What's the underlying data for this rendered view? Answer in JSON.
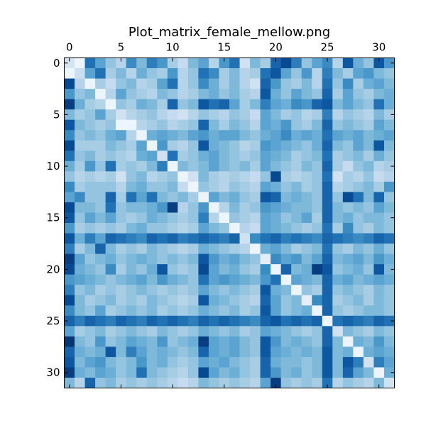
{
  "chart_data": {
    "type": "heatmap",
    "title": "Plot_matrix_female_mellow.png",
    "xlabel": "",
    "ylabel": "",
    "colormap": "Blues",
    "value_range": [
      0,
      1
    ],
    "x_ticks_position": "top",
    "x_ticks": [
      0,
      5,
      10,
      15,
      20,
      25,
      30
    ],
    "y_ticks": [
      0,
      5,
      10,
      15,
      20,
      25,
      30
    ],
    "x_range": [
      -0.5,
      31.5
    ],
    "y_range": [
      31.5,
      -0.5
    ],
    "grid": false,
    "colors": {
      "low": "#f7fbff",
      "mid": "#6baed6",
      "high": "#08306b",
      "frame": "#000000"
    },
    "rows": 32,
    "cols": 32,
    "values": [
      [
        0.18,
        0.05,
        0.75,
        0.55,
        0.4,
        0.3,
        0.65,
        0.45,
        0.7,
        0.6,
        0.35,
        0.25,
        0.45,
        0.55,
        0.3,
        0.6,
        0.75,
        0.2,
        0.45,
        0.35,
        0.8,
        0.9,
        0.7,
        0.4,
        0.55,
        0.65,
        0.3,
        0.85,
        0.5,
        0.4,
        0.85,
        0.6
      ],
      [
        0.05,
        0.22,
        0.55,
        0.75,
        0.35,
        0.45,
        0.3,
        0.5,
        0.4,
        0.35,
        0.6,
        0.3,
        0.4,
        0.75,
        0.65,
        0.35,
        0.45,
        0.3,
        0.35,
        0.75,
        0.85,
        0.55,
        0.4,
        0.6,
        0.3,
        0.7,
        0.45,
        0.35,
        0.55,
        0.6,
        0.45,
        0.4
      ],
      [
        0.9,
        0.3,
        0.05,
        0.35,
        0.25,
        0.4,
        0.45,
        0.3,
        0.35,
        0.55,
        0.75,
        0.3,
        0.4,
        0.65,
        0.5,
        0.35,
        0.45,
        0.3,
        0.2,
        0.8,
        0.6,
        0.4,
        0.35,
        0.45,
        0.3,
        0.75,
        0.4,
        0.65,
        0.35,
        0.5,
        0.55,
        0.45
      ],
      [
        0.6,
        0.4,
        0.45,
        0.05,
        0.3,
        0.55,
        0.4,
        0.35,
        0.3,
        0.45,
        0.4,
        0.3,
        0.35,
        0.45,
        0.5,
        0.4,
        0.45,
        0.35,
        0.3,
        0.85,
        0.5,
        0.4,
        0.55,
        0.45,
        0.4,
        0.8,
        0.35,
        0.55,
        0.4,
        0.35,
        0.45,
        0.5
      ],
      [
        0.95,
        0.5,
        0.35,
        0.3,
        0.05,
        0.4,
        0.35,
        0.5,
        0.45,
        0.35,
        0.8,
        0.4,
        0.45,
        0.85,
        0.75,
        0.8,
        0.55,
        0.35,
        0.45,
        0.7,
        0.55,
        0.5,
        0.65,
        0.6,
        0.8,
        0.85,
        0.45,
        0.55,
        0.45,
        0.4,
        0.75,
        0.5
      ],
      [
        0.45,
        0.35,
        0.4,
        0.55,
        0.35,
        0.2,
        0.3,
        0.35,
        0.4,
        0.3,
        0.25,
        0.2,
        0.3,
        0.4,
        0.35,
        0.3,
        0.4,
        0.35,
        0.25,
        0.55,
        0.45,
        0.35,
        0.4,
        0.3,
        0.35,
        0.7,
        0.3,
        0.4,
        0.35,
        0.3,
        0.45,
        0.35
      ],
      [
        0.85,
        0.45,
        0.4,
        0.35,
        0.4,
        0.05,
        0.05,
        0.3,
        0.35,
        0.4,
        0.3,
        0.35,
        0.4,
        0.8,
        0.45,
        0.35,
        0.45,
        0.4,
        0.3,
        0.55,
        0.5,
        0.6,
        0.4,
        0.35,
        0.45,
        0.8,
        0.4,
        0.45,
        0.4,
        0.35,
        0.55,
        0.45
      ],
      [
        0.65,
        0.4,
        0.45,
        0.4,
        0.5,
        0.55,
        0.3,
        0.05,
        0.5,
        0.55,
        0.5,
        0.45,
        0.55,
        0.6,
        0.5,
        0.55,
        0.55,
        0.45,
        0.4,
        0.5,
        0.55,
        0.65,
        0.5,
        0.55,
        0.5,
        0.75,
        0.55,
        0.5,
        0.55,
        0.45,
        0.5,
        0.55
      ],
      [
        0.9,
        0.35,
        0.35,
        0.35,
        0.45,
        0.4,
        0.35,
        0.55,
        0.05,
        0.6,
        0.35,
        0.3,
        0.4,
        0.85,
        0.5,
        0.45,
        0.4,
        0.3,
        0.35,
        0.6,
        0.55,
        0.5,
        0.45,
        0.4,
        0.5,
        0.8,
        0.45,
        0.4,
        0.55,
        0.45,
        0.85,
        0.45
      ],
      [
        0.75,
        0.4,
        0.45,
        0.35,
        0.4,
        0.35,
        0.3,
        0.5,
        0.55,
        0.2,
        0.75,
        0.35,
        0.4,
        0.5,
        0.55,
        0.45,
        0.4,
        0.35,
        0.4,
        0.55,
        0.5,
        0.45,
        0.35,
        0.4,
        0.45,
        0.75,
        0.35,
        0.4,
        0.45,
        0.35,
        0.5,
        0.4
      ],
      [
        0.5,
        0.35,
        0.6,
        0.4,
        0.75,
        0.35,
        0.4,
        0.35,
        0.45,
        0.7,
        0.05,
        0.45,
        0.4,
        0.45,
        0.55,
        0.45,
        0.4,
        0.45,
        0.35,
        0.55,
        0.45,
        0.4,
        0.35,
        0.45,
        0.4,
        0.8,
        0.35,
        0.25,
        0.4,
        0.45,
        0.3,
        0.35
      ],
      [
        0.4,
        0.3,
        0.35,
        0.3,
        0.35,
        0.2,
        0.4,
        0.45,
        0.3,
        0.35,
        0.4,
        0.05,
        0.2,
        0.45,
        0.35,
        0.3,
        0.35,
        0.3,
        0.25,
        0.4,
        0.9,
        0.35,
        0.3,
        0.35,
        0.4,
        0.75,
        0.2,
        0.35,
        0.3,
        0.4,
        0.25,
        0.3
      ],
      [
        0.65,
        0.35,
        0.4,
        0.4,
        0.4,
        0.3,
        0.45,
        0.5,
        0.4,
        0.4,
        0.45,
        0.25,
        0.05,
        0.4,
        0.35,
        0.3,
        0.4,
        0.35,
        0.3,
        0.55,
        0.5,
        0.4,
        0.45,
        0.35,
        0.4,
        0.8,
        0.3,
        0.35,
        0.4,
        0.45,
        0.35,
        0.6
      ],
      [
        0.55,
        0.65,
        0.4,
        0.4,
        0.8,
        0.35,
        0.75,
        0.55,
        0.75,
        0.45,
        0.4,
        0.45,
        0.35,
        0.05,
        0.55,
        0.45,
        0.5,
        0.4,
        0.35,
        0.85,
        0.8,
        0.45,
        0.5,
        0.45,
        0.4,
        0.8,
        0.4,
        0.9,
        0.75,
        0.45,
        0.8,
        0.4
      ],
      [
        0.9,
        0.45,
        0.45,
        0.4,
        0.75,
        0.4,
        0.45,
        0.45,
        0.5,
        0.6,
        0.95,
        0.3,
        0.4,
        0.6,
        0.05,
        0.3,
        0.45,
        0.35,
        0.4,
        0.6,
        0.55,
        0.5,
        0.45,
        0.45,
        0.4,
        0.8,
        0.45,
        0.4,
        0.45,
        0.4,
        0.55,
        0.45
      ],
      [
        0.85,
        0.4,
        0.55,
        0.45,
        0.55,
        0.4,
        0.35,
        0.4,
        0.5,
        0.45,
        0.4,
        0.35,
        0.4,
        0.7,
        0.3,
        0.05,
        0.4,
        0.35,
        0.3,
        0.55,
        0.5,
        0.4,
        0.45,
        0.55,
        0.35,
        0.8,
        0.45,
        0.5,
        0.4,
        0.45,
        0.45,
        0.4
      ],
      [
        0.6,
        0.35,
        0.4,
        0.35,
        0.4,
        0.35,
        0.45,
        0.5,
        0.4,
        0.4,
        0.35,
        0.3,
        0.35,
        0.55,
        0.45,
        0.4,
        0.05,
        0.3,
        0.25,
        0.55,
        0.5,
        0.45,
        0.4,
        0.35,
        0.4,
        0.75,
        0.35,
        0.65,
        0.4,
        0.35,
        0.45,
        0.4
      ],
      [
        0.85,
        0.5,
        0.7,
        0.55,
        0.8,
        0.75,
        0.7,
        0.65,
        0.8,
        0.75,
        0.8,
        0.7,
        0.75,
        0.8,
        0.75,
        0.7,
        0.8,
        0.2,
        0.65,
        0.75,
        0.8,
        0.7,
        0.75,
        0.7,
        0.65,
        0.8,
        0.75,
        0.7,
        0.65,
        0.7,
        0.8,
        0.75
      ],
      [
        0.7,
        0.35,
        0.45,
        0.8,
        0.45,
        0.35,
        0.4,
        0.35,
        0.45,
        0.4,
        0.35,
        0.3,
        0.35,
        0.5,
        0.45,
        0.4,
        0.35,
        0.3,
        0.05,
        0.5,
        0.55,
        0.45,
        0.35,
        0.4,
        0.45,
        0.75,
        0.4,
        0.35,
        0.45,
        0.4,
        0.5,
        0.4
      ],
      [
        0.95,
        0.55,
        0.4,
        0.45,
        0.5,
        0.4,
        0.45,
        0.5,
        0.45,
        0.4,
        0.45,
        0.4,
        0.45,
        0.85,
        0.6,
        0.5,
        0.55,
        0.45,
        0.4,
        0.1,
        0.65,
        0.55,
        0.6,
        0.45,
        0.55,
        0.8,
        0.45,
        0.5,
        0.55,
        0.45,
        0.6,
        0.5
      ],
      [
        0.9,
        0.5,
        0.45,
        0.4,
        0.65,
        0.35,
        0.45,
        0.4,
        0.5,
        0.85,
        0.4,
        0.35,
        0.4,
        0.9,
        0.55,
        0.45,
        0.5,
        0.4,
        0.35,
        0.65,
        0.05,
        0.8,
        0.45,
        0.5,
        0.95,
        0.85,
        0.4,
        0.45,
        0.5,
        0.4,
        0.85,
        0.45
      ],
      [
        0.6,
        0.55,
        0.5,
        0.45,
        0.4,
        0.45,
        0.5,
        0.55,
        0.45,
        0.6,
        0.5,
        0.45,
        0.4,
        0.75,
        0.55,
        0.6,
        0.55,
        0.5,
        0.45,
        0.6,
        0.75,
        0.05,
        0.55,
        0.5,
        0.45,
        0.8,
        0.5,
        0.55,
        0.45,
        0.5,
        0.55,
        0.5
      ],
      [
        0.7,
        0.4,
        0.45,
        0.35,
        0.4,
        0.35,
        0.4,
        0.45,
        0.4,
        0.35,
        0.4,
        0.35,
        0.4,
        0.55,
        0.45,
        0.4,
        0.45,
        0.4,
        0.35,
        0.85,
        0.5,
        0.45,
        0.05,
        0.4,
        0.35,
        0.8,
        0.4,
        0.45,
        0.4,
        0.35,
        0.45,
        0.4
      ],
      [
        0.9,
        0.45,
        0.35,
        0.4,
        0.45,
        0.35,
        0.4,
        0.35,
        0.45,
        0.4,
        0.35,
        0.3,
        0.35,
        0.85,
        0.5,
        0.45,
        0.4,
        0.35,
        0.3,
        0.8,
        0.55,
        0.4,
        0.45,
        0.1,
        0.65,
        0.8,
        0.35,
        0.4,
        0.45,
        0.35,
        0.45,
        0.4
      ],
      [
        0.65,
        0.45,
        0.4,
        0.55,
        0.35,
        0.4,
        0.45,
        0.4,
        0.45,
        0.35,
        0.4,
        0.35,
        0.4,
        0.5,
        0.45,
        0.4,
        0.45,
        0.35,
        0.4,
        0.85,
        0.55,
        0.4,
        0.45,
        0.5,
        0.05,
        0.8,
        0.4,
        0.35,
        0.4,
        0.45,
        0.45,
        0.4
      ],
      [
        0.8,
        0.7,
        0.8,
        0.75,
        0.7,
        0.8,
        0.75,
        0.7,
        0.8,
        0.75,
        0.8,
        0.75,
        0.7,
        0.8,
        0.75,
        0.8,
        0.75,
        0.7,
        0.65,
        0.8,
        0.85,
        0.75,
        0.8,
        0.75,
        0.8,
        0.05,
        0.75,
        0.8,
        0.75,
        0.7,
        0.8,
        0.75
      ],
      [
        0.55,
        0.35,
        0.4,
        0.45,
        0.35,
        0.4,
        0.45,
        0.4,
        0.35,
        0.45,
        0.4,
        0.35,
        0.4,
        0.5,
        0.45,
        0.4,
        0.45,
        0.35,
        0.4,
        0.55,
        0.5,
        0.45,
        0.4,
        0.35,
        0.4,
        0.8,
        0.2,
        0.45,
        0.4,
        0.35,
        0.45,
        0.4
      ],
      [
        0.98,
        0.45,
        0.4,
        0.6,
        0.4,
        0.45,
        0.55,
        0.5,
        0.45,
        0.6,
        0.4,
        0.45,
        0.5,
        0.95,
        0.55,
        0.5,
        0.55,
        0.45,
        0.4,
        0.85,
        0.6,
        0.45,
        0.5,
        0.45,
        0.4,
        0.8,
        0.45,
        0.05,
        0.5,
        0.45,
        0.6,
        0.45
      ],
      [
        0.8,
        0.5,
        0.45,
        0.5,
        0.85,
        0.45,
        0.7,
        0.55,
        0.45,
        0.5,
        0.45,
        0.4,
        0.45,
        0.8,
        0.55,
        0.5,
        0.55,
        0.45,
        0.4,
        0.85,
        0.55,
        0.5,
        0.45,
        0.5,
        0.45,
        0.85,
        0.45,
        0.5,
        0.05,
        0.5,
        0.55,
        0.5
      ],
      [
        0.85,
        0.45,
        0.55,
        0.6,
        0.45,
        0.4,
        0.45,
        0.6,
        0.45,
        0.5,
        0.4,
        0.35,
        0.4,
        0.55,
        0.5,
        0.55,
        0.45,
        0.4,
        0.35,
        0.8,
        0.5,
        0.45,
        0.45,
        0.4,
        0.45,
        0.85,
        0.45,
        0.85,
        0.7,
        0.2,
        0.7,
        0.55
      ],
      [
        0.95,
        0.5,
        0.45,
        0.55,
        0.5,
        0.4,
        0.45,
        0.75,
        0.45,
        0.4,
        0.35,
        0.3,
        0.4,
        0.9,
        0.55,
        0.45,
        0.5,
        0.4,
        0.35,
        0.8,
        0.6,
        0.45,
        0.5,
        0.4,
        0.45,
        0.85,
        0.45,
        0.8,
        0.55,
        0.45,
        0.05,
        0.5
      ],
      [
        0.45,
        0.3,
        0.8,
        0.4,
        0.45,
        0.35,
        0.4,
        0.35,
        0.4,
        0.35,
        0.3,
        0.25,
        0.3,
        0.45,
        0.4,
        0.35,
        0.4,
        0.35,
        0.3,
        0.55,
        0.95,
        0.4,
        0.35,
        0.4,
        0.35,
        0.75,
        0.3,
        0.4,
        0.35,
        0.3,
        0.45,
        0.2
      ]
    ]
  }
}
